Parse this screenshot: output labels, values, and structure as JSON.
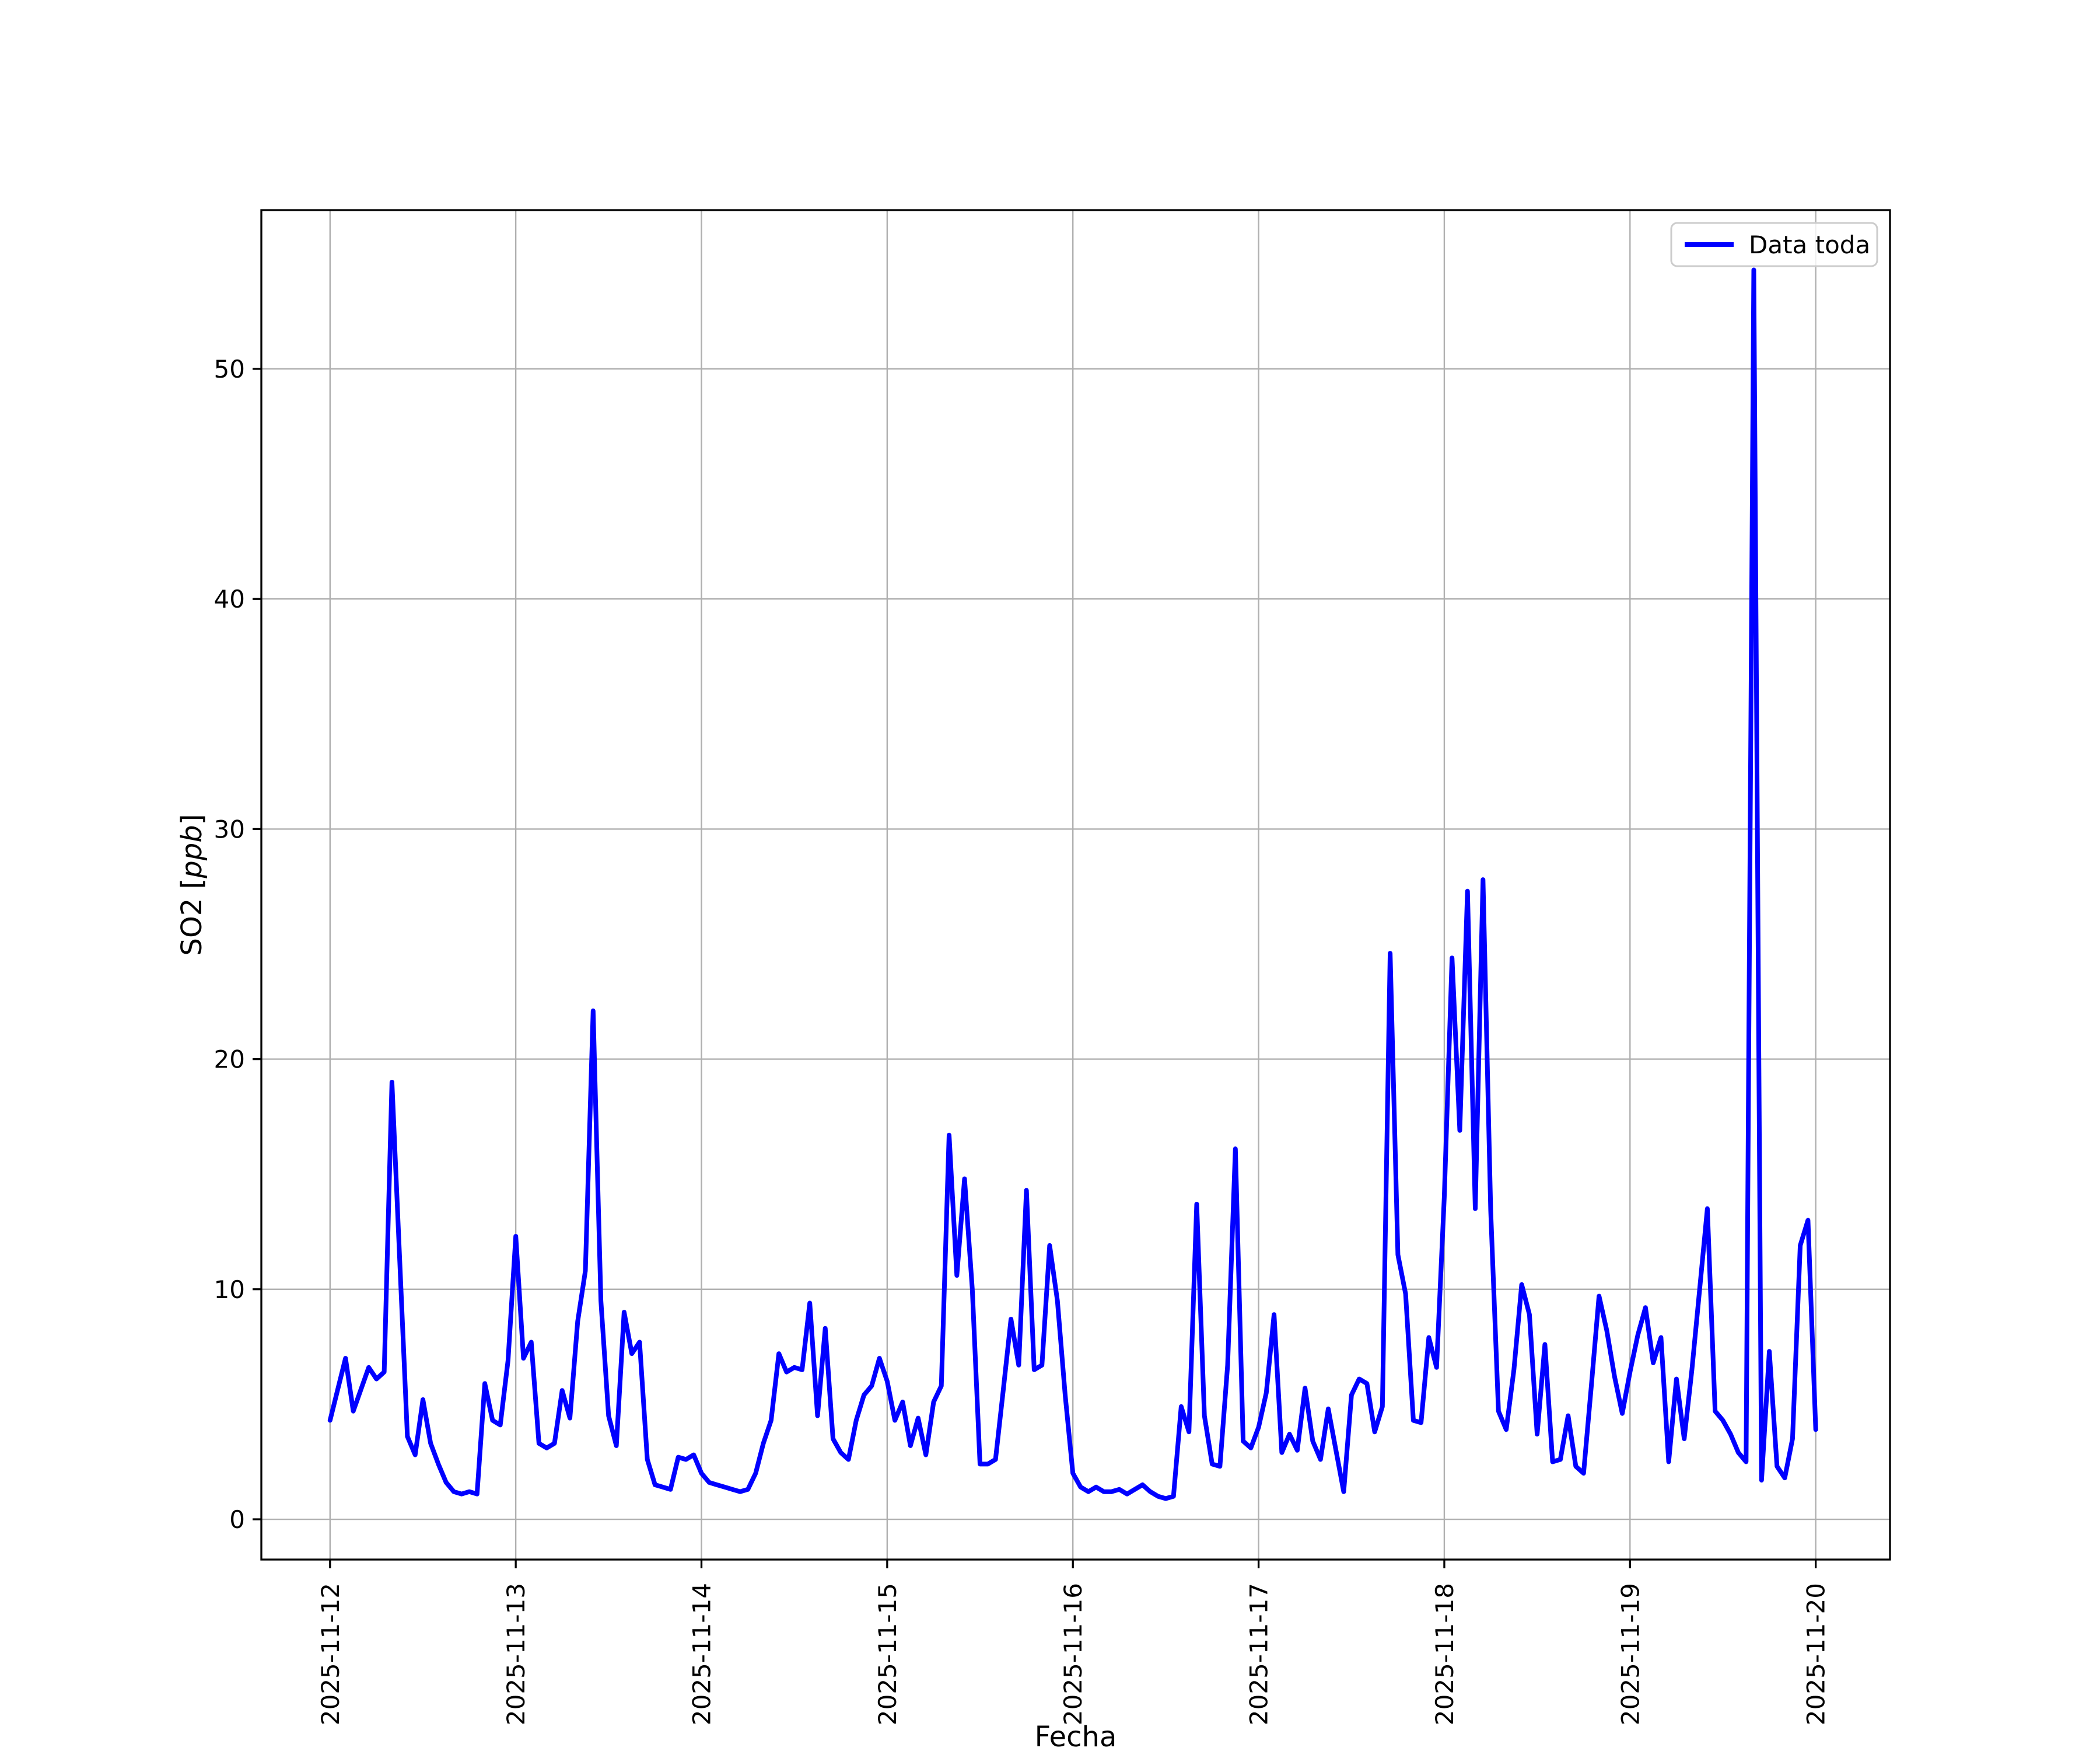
{
  "figure": {
    "background": "#ffffff"
  },
  "axis_labels": {
    "x": "Fecha",
    "y_prefix": "SO2 [",
    "y_italic": "ppb",
    "y_suffix": "]"
  },
  "legend": {
    "label": "Data toda"
  },
  "chart_data": {
    "type": "line",
    "title": "",
    "xlabel": "Fecha",
    "ylabel": "SO2 [ppb]",
    "grid": true,
    "grid_color": "#b0b0b0",
    "line_color": "#0000ff",
    "legend_position": "upper right",
    "legend_entries": [
      "Data toda"
    ],
    "x_unit": "hours since 2025-11-12 00:00",
    "x_tick_labels": [
      "2025-11-12",
      "2025-11-13",
      "2025-11-14",
      "2025-11-15",
      "2025-11-16",
      "2025-11-17",
      "2025-11-18",
      "2025-11-19",
      "2025-11-20"
    ],
    "y_ticks": [
      0,
      10,
      20,
      30,
      40,
      50
    ],
    "xlim_days": [
      -0.37,
      8.4
    ],
    "ylim": [
      -1.75,
      56.9
    ],
    "series": [
      {
        "name": "Data toda",
        "points": [
          [
            0,
            4.3
          ],
          [
            2,
            7.0
          ],
          [
            3,
            4.7
          ],
          [
            5,
            6.6
          ],
          [
            6,
            6.1
          ],
          [
            7,
            6.4
          ],
          [
            8,
            19.0
          ],
          [
            10,
            3.6
          ],
          [
            11,
            2.8
          ],
          [
            12,
            5.2
          ],
          [
            13,
            3.3
          ],
          [
            14,
            2.4
          ],
          [
            15,
            1.6
          ],
          [
            16,
            1.2
          ],
          [
            17,
            1.1
          ],
          [
            18,
            1.2
          ],
          [
            19,
            1.1
          ],
          [
            20,
            5.9
          ],
          [
            21,
            4.3
          ],
          [
            22,
            4.1
          ],
          [
            23,
            6.9
          ],
          [
            24,
            12.3
          ],
          [
            25,
            7.0
          ],
          [
            26,
            7.7
          ],
          [
            27,
            3.3
          ],
          [
            28,
            3.1
          ],
          [
            29,
            3.3
          ],
          [
            30,
            5.6
          ],
          [
            31,
            4.4
          ],
          [
            32,
            8.6
          ],
          [
            33,
            10.8
          ],
          [
            34,
            22.1
          ],
          [
            35,
            9.5
          ],
          [
            36,
            4.5
          ],
          [
            37,
            3.2
          ],
          [
            38,
            9.0
          ],
          [
            39,
            7.2
          ],
          [
            40,
            7.7
          ],
          [
            41,
            2.6
          ],
          [
            42,
            1.5
          ],
          [
            43,
            1.4
          ],
          [
            44,
            1.3
          ],
          [
            45,
            2.7
          ],
          [
            46,
            2.6
          ],
          [
            47,
            2.8
          ],
          [
            48,
            2.0
          ],
          [
            49,
            1.6
          ],
          [
            50,
            1.5
          ],
          [
            51,
            1.4
          ],
          [
            52,
            1.3
          ],
          [
            53,
            1.2
          ],
          [
            54,
            1.3
          ],
          [
            55,
            2.0
          ],
          [
            56,
            3.3
          ],
          [
            57,
            4.3
          ],
          [
            58,
            7.2
          ],
          [
            59,
            6.4
          ],
          [
            60,
            6.6
          ],
          [
            61,
            6.5
          ],
          [
            62,
            9.4
          ],
          [
            63,
            4.5
          ],
          [
            64,
            8.3
          ],
          [
            65,
            3.5
          ],
          [
            66,
            2.9
          ],
          [
            67,
            2.6
          ],
          [
            68,
            4.3
          ],
          [
            69,
            5.4
          ],
          [
            70,
            5.8
          ],
          [
            71,
            7.0
          ],
          [
            72,
            6.0
          ],
          [
            73,
            4.3
          ],
          [
            74,
            5.1
          ],
          [
            75,
            3.2
          ],
          [
            76,
            4.4
          ],
          [
            77,
            2.8
          ],
          [
            78,
            5.1
          ],
          [
            79,
            5.8
          ],
          [
            80,
            16.7
          ],
          [
            81,
            10.6
          ],
          [
            82,
            14.8
          ],
          [
            83,
            10.0
          ],
          [
            84,
            2.4
          ],
          [
            85,
            2.4
          ],
          [
            86,
            2.6
          ],
          [
            87,
            5.6
          ],
          [
            88,
            8.7
          ],
          [
            89,
            6.7
          ],
          [
            90,
            14.3
          ],
          [
            91,
            6.5
          ],
          [
            92,
            6.7
          ],
          [
            93,
            11.9
          ],
          [
            94,
            9.5
          ],
          [
            95,
            5.4
          ],
          [
            96,
            2.0
          ],
          [
            97,
            1.4
          ],
          [
            98,
            1.2
          ],
          [
            99,
            1.4
          ],
          [
            100,
            1.2
          ],
          [
            101,
            1.2
          ],
          [
            102,
            1.3
          ],
          [
            103,
            1.1
          ],
          [
            104,
            1.3
          ],
          [
            105,
            1.5
          ],
          [
            106,
            1.2
          ],
          [
            107,
            1.0
          ],
          [
            108,
            0.9
          ],
          [
            109,
            1.0
          ],
          [
            110,
            4.9
          ],
          [
            111,
            3.8
          ],
          [
            112,
            13.7
          ],
          [
            113,
            4.5
          ],
          [
            114,
            2.4
          ],
          [
            115,
            2.3
          ],
          [
            116,
            6.7
          ],
          [
            117,
            16.1
          ],
          [
            118,
            3.4
          ],
          [
            119,
            3.1
          ],
          [
            120,
            4.0
          ],
          [
            121,
            5.5
          ],
          [
            122,
            8.9
          ],
          [
            123,
            2.9
          ],
          [
            124,
            3.7
          ],
          [
            125,
            3.0
          ],
          [
            126,
            5.7
          ],
          [
            127,
            3.4
          ],
          [
            128,
            2.6
          ],
          [
            129,
            4.8
          ],
          [
            130,
            3.0
          ],
          [
            131,
            1.2
          ],
          [
            132,
            5.4
          ],
          [
            133,
            6.1
          ],
          [
            134,
            5.9
          ],
          [
            135,
            3.8
          ],
          [
            136,
            4.9
          ],
          [
            137,
            24.6
          ],
          [
            138,
            11.5
          ],
          [
            139,
            9.8
          ],
          [
            140,
            4.3
          ],
          [
            141,
            4.2
          ],
          [
            142,
            7.9
          ],
          [
            143,
            6.6
          ],
          [
            144,
            14.0
          ],
          [
            145,
            24.4
          ],
          [
            146,
            16.9
          ],
          [
            147,
            27.3
          ],
          [
            148,
            13.5
          ],
          [
            149,
            27.8
          ],
          [
            150,
            13.4
          ],
          [
            151,
            4.7
          ],
          [
            152,
            3.9
          ],
          [
            153,
            6.5
          ],
          [
            154,
            10.2
          ],
          [
            155,
            8.9
          ],
          [
            156,
            3.7
          ],
          [
            157,
            7.6
          ],
          [
            158,
            2.5
          ],
          [
            159,
            2.6
          ],
          [
            160,
            4.5
          ],
          [
            161,
            2.3
          ],
          [
            162,
            2.0
          ],
          [
            163,
            5.8
          ],
          [
            164,
            9.7
          ],
          [
            165,
            8.2
          ],
          [
            166,
            6.2
          ],
          [
            167,
            4.6
          ],
          [
            168,
            6.4
          ],
          [
            169,
            8.0
          ],
          [
            170,
            9.2
          ],
          [
            171,
            6.8
          ],
          [
            172,
            7.9
          ],
          [
            173,
            2.5
          ],
          [
            174,
            6.1
          ],
          [
            175,
            3.5
          ],
          [
            176,
            6.5
          ],
          [
            177,
            10.0
          ],
          [
            178,
            13.5
          ],
          [
            179,
            4.7
          ],
          [
            180,
            4.3
          ],
          [
            181,
            3.7
          ],
          [
            182,
            2.9
          ],
          [
            183,
            2.5
          ],
          [
            184,
            54.3
          ],
          [
            185,
            1.7
          ],
          [
            186,
            7.3
          ],
          [
            187,
            2.3
          ],
          [
            188,
            1.8
          ],
          [
            189,
            3.5
          ],
          [
            190,
            11.9
          ],
          [
            191,
            13.0
          ],
          [
            192,
            3.9
          ]
        ]
      }
    ]
  }
}
